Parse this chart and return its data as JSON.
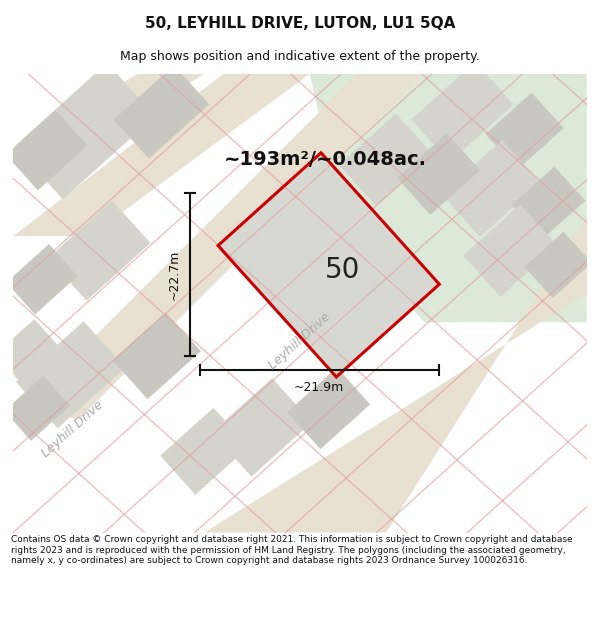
{
  "title": "50, LEYHILL DRIVE, LUTON, LU1 5QA",
  "subtitle": "Map shows position and indicative extent of the property.",
  "area_label": "~193m²/~0.048ac.",
  "plot_number": "50",
  "dim_width": "~21.9m",
  "dim_height": "~22.7m",
  "street_label1": "Leyhill Drive",
  "street_label2": "Leyhill Drive",
  "footer": "Contains OS data © Crown copyright and database right 2021. This information is subject to Crown copyright and database rights 2023 and is reproduced with the permission of HM Land Registry. The polygons (including the associated geometry, namely x, y co-ordinates) are subject to Crown copyright and database rights 2023 Ordnance Survey 100026316.",
  "bg_color": "#f0f0ec",
  "green_bg": "#dce8d8",
  "block_color": "#d4d4cc",
  "road_fill": "#e8e0d0",
  "plot_fill": "#d8d8d2",
  "plot_outline_color": "#cc0000",
  "road_line_color": "#e0a0a0",
  "dim_line_color": "#111111",
  "text_color": "#111111",
  "street_text_color": "#aaaaaa",
  "title_fontsize": 11,
  "subtitle_fontsize": 9,
  "area_fontsize": 14,
  "plot_num_fontsize": 20,
  "dim_fontsize": 9,
  "street_fontsize": 9,
  "footer_fontsize": 6.5
}
